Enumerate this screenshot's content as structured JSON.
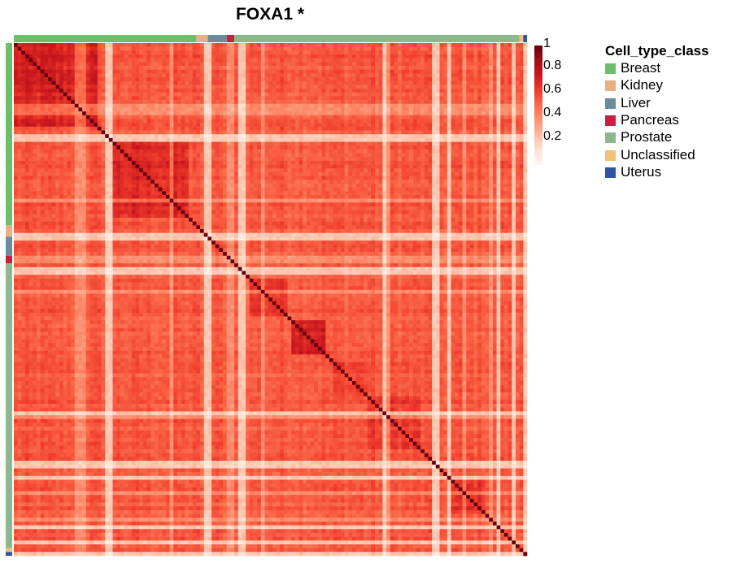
{
  "chart_data": {
    "type": "heatmap",
    "title": "FOXA1 *",
    "n": 135,
    "colorbar": {
      "ticks": [
        "1",
        "0.8",
        "0.6",
        "0.4",
        "0.2"
      ],
      "range": [
        0,
        1
      ],
      "colors": [
        "#fff5f0",
        "#fee0d2",
        "#fcbba1",
        "#fc9272",
        "#fb6a4a",
        "#ef3b2c",
        "#cb181d",
        "#a50f15",
        "#67000d"
      ]
    },
    "legend": {
      "title": "Cell_type_class",
      "items": [
        {
          "label": "Breast",
          "color": "#6cbf6a"
        },
        {
          "label": "Kidney",
          "color": "#e8b183"
        },
        {
          "label": "Liver",
          "color": "#6b8c9e"
        },
        {
          "label": "Pancreas",
          "color": "#c8203f"
        },
        {
          "label": "Prostate",
          "color": "#8cb890"
        },
        {
          "label": "Unclassified",
          "color": "#f2c175"
        },
        {
          "label": "Uterus",
          "color": "#2f54a3"
        }
      ]
    },
    "annotation_segments": [
      {
        "class": "Breast",
        "count": 48
      },
      {
        "class": "Kidney",
        "count": 3
      },
      {
        "class": "Liver",
        "count": 5
      },
      {
        "class": "Pancreas",
        "count": 2
      },
      {
        "class": "Prostate",
        "count": 75
      },
      {
        "class": "Unclassified",
        "count": 1
      },
      {
        "class": "Uterus",
        "count": 1
      }
    ],
    "low_rows": [
      24,
      25,
      50,
      51,
      59,
      60,
      97,
      110,
      111,
      114,
      127,
      131,
      134
    ],
    "mid_low_rows": [
      16,
      17,
      18,
      41,
      56,
      57,
      65,
      98,
      118,
      125
    ],
    "blocks": [
      {
        "start": 0,
        "end": 22,
        "value": 0.72
      },
      {
        "start": 26,
        "end": 46,
        "value": 0.7
      },
      {
        "start": 62,
        "end": 72,
        "value": 0.66
      },
      {
        "start": 73,
        "end": 82,
        "value": 0.78
      },
      {
        "start": 84,
        "end": 93,
        "value": 0.62
      },
      {
        "start": 93,
        "end": 107,
        "value": 0.64
      },
      {
        "start": 115,
        "end": 124,
        "value": 0.66
      },
      {
        "start": 125,
        "end": 133,
        "value": 0.58
      }
    ],
    "base_value": 0.56,
    "diagonal_value": 1
  }
}
